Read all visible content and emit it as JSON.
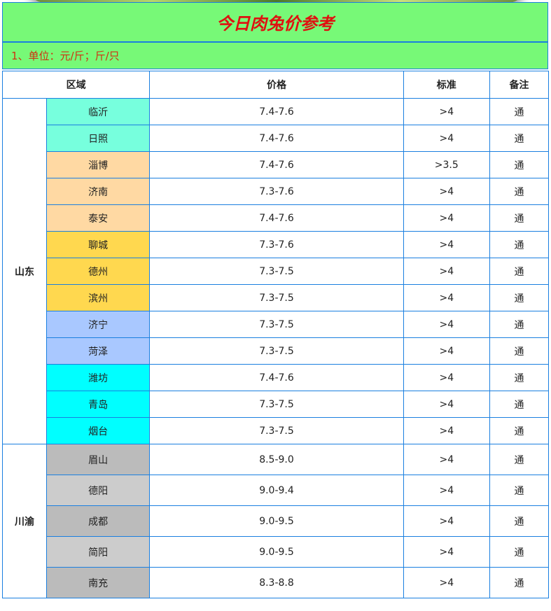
{
  "title": "今日肉兔价参考",
  "unit_note": "1、单位：元/斤；斤/只",
  "headers": {
    "region": "区域",
    "price": "价格",
    "standard": "标准",
    "note": "备注"
  },
  "groups": [
    {
      "province": "山东",
      "row_height": 39,
      "rows": [
        {
          "city": "临沂",
          "price": "7.4-7.6",
          "standard": ">4",
          "note": "通",
          "color": "#77ffdd"
        },
        {
          "city": "日照",
          "price": "7.4-7.6",
          "standard": ">4",
          "note": "通",
          "color": "#77ffdd"
        },
        {
          "city": "淄博",
          "price": "7.4-7.6",
          "standard": ">3.5",
          "note": "通",
          "color": "#ffd9a3"
        },
        {
          "city": "济南",
          "price": "7.3-7.6",
          "standard": ">4",
          "note": "通",
          "color": "#ffd9a3"
        },
        {
          "city": "泰安",
          "price": "7.4-7.6",
          "standard": ">4",
          "note": "通",
          "color": "#ffd9a3"
        },
        {
          "city": "聊城",
          "price": "7.3-7.6",
          "standard": ">4",
          "note": "通",
          "color": "#ffd84f"
        },
        {
          "city": "德州",
          "price": "7.3-7.5",
          "standard": ">4",
          "note": "通",
          "color": "#ffd84f"
        },
        {
          "city": "滨州",
          "price": "7.3-7.5",
          "standard": ">4",
          "note": "通",
          "color": "#ffd84f"
        },
        {
          "city": "济宁",
          "price": "7.3-7.5",
          "standard": ">4",
          "note": "通",
          "color": "#a9c8ff"
        },
        {
          "city": "菏泽",
          "price": "7.3-7.5",
          "standard": ">4",
          "note": "通",
          "color": "#a9c8ff"
        },
        {
          "city": "潍坊",
          "price": "7.4-7.6",
          "standard": ">4",
          "note": "通",
          "color": "#00ffff"
        },
        {
          "city": "青岛",
          "price": "7.3-7.5",
          "standard": ">4",
          "note": "通",
          "color": "#00ffff"
        },
        {
          "city": "烟台",
          "price": "7.3-7.5",
          "standard": ">4",
          "note": "通",
          "color": "#00ffff"
        }
      ]
    },
    {
      "province": "川渝",
      "row_height": 45,
      "rows": [
        {
          "city": "眉山",
          "price": "8.5-9.0",
          "standard": ">4",
          "note": "通",
          "color": "#bbbbbb"
        },
        {
          "city": "德阳",
          "price": "9.0-9.4",
          "standard": ">4",
          "note": "通",
          "color": "#cccccc"
        },
        {
          "city": "成都",
          "price": "9.0-9.5",
          "standard": ">4",
          "note": "通",
          "color": "#bbbbbb"
        },
        {
          "city": "简阳",
          "price": "9.0-9.5",
          "standard": ">4",
          "note": "通",
          "color": "#cccccc"
        },
        {
          "city": "南充",
          "price": "8.3-8.8",
          "standard": ">4",
          "note": "通",
          "color": "#bbbbbb"
        }
      ]
    }
  ]
}
